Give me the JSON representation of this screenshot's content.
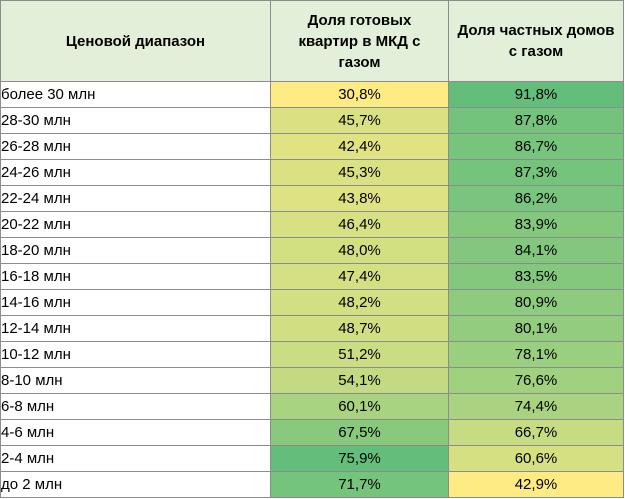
{
  "chart_data": {
    "type": "table",
    "columns": [
      "Ценовой диапазон",
      "Доля готовых квартир в МКД с газом",
      "Доля частных домов с газом"
    ],
    "rows": [
      {
        "range": "более 30 млн",
        "apartments": "30,8%",
        "houses": "91,8%",
        "apartments_value": 30.8,
        "houses_value": 91.8
      },
      {
        "range": "28-30 млн",
        "apartments": "45,7%",
        "houses": "87,8%",
        "apartments_value": 45.7,
        "houses_value": 87.8
      },
      {
        "range": "26-28 млн",
        "apartments": "42,4%",
        "houses": "86,7%",
        "apartments_value": 42.4,
        "houses_value": 86.7
      },
      {
        "range": "24-26 млн",
        "apartments": "45,3%",
        "houses": "87,3%",
        "apartments_value": 45.3,
        "houses_value": 87.3
      },
      {
        "range": "22-24 млн",
        "apartments": "43,8%",
        "houses": "86,2%",
        "apartments_value": 43.8,
        "houses_value": 86.2
      },
      {
        "range": "20-22 млн",
        "apartments": "46,4%",
        "houses": "83,9%",
        "apartments_value": 46.4,
        "houses_value": 83.9
      },
      {
        "range": "18-20 млн",
        "apartments": "48,0%",
        "houses": "84,1%",
        "apartments_value": 48.0,
        "houses_value": 84.1
      },
      {
        "range": "16-18 млн",
        "apartments": "47,4%",
        "houses": "83,5%",
        "apartments_value": 47.4,
        "houses_value": 83.5
      },
      {
        "range": "14-16 млн",
        "apartments": "48,2%",
        "houses": "80,9%",
        "apartments_value": 48.2,
        "houses_value": 80.9
      },
      {
        "range": "12-14 млн",
        "apartments": "48,7%",
        "houses": "80,1%",
        "apartments_value": 48.7,
        "houses_value": 80.1
      },
      {
        "range": "10-12 млн",
        "apartments": "51,2%",
        "houses": "78,1%",
        "apartments_value": 51.2,
        "houses_value": 78.1
      },
      {
        "range": "8-10 млн",
        "apartments": "54,1%",
        "houses": "76,6%",
        "apartments_value": 54.1,
        "houses_value": 76.6
      },
      {
        "range": "6-8 млн",
        "apartments": "60,1%",
        "houses": "74,4%",
        "apartments_value": 60.1,
        "houses_value": 74.4
      },
      {
        "range": "4-6 млн",
        "apartments": "67,5%",
        "houses": "66,7%",
        "apartments_value": 67.5,
        "houses_value": 66.7
      },
      {
        "range": "2-4 млн",
        "apartments": "75,9%",
        "houses": "60,6%",
        "apartments_value": 75.9,
        "houses_value": 60.6
      },
      {
        "range": "до 2 млн",
        "apartments": "71,7%",
        "houses": "42,9%",
        "apartments_value": 71.7,
        "houses_value": 42.9
      }
    ],
    "color_scale": {
      "low": "#ffeb84",
      "mid": "#c5dc82",
      "high": "#63be7b"
    },
    "header_color": "#e2f0d9",
    "border_color": "#8c8c8c"
  }
}
